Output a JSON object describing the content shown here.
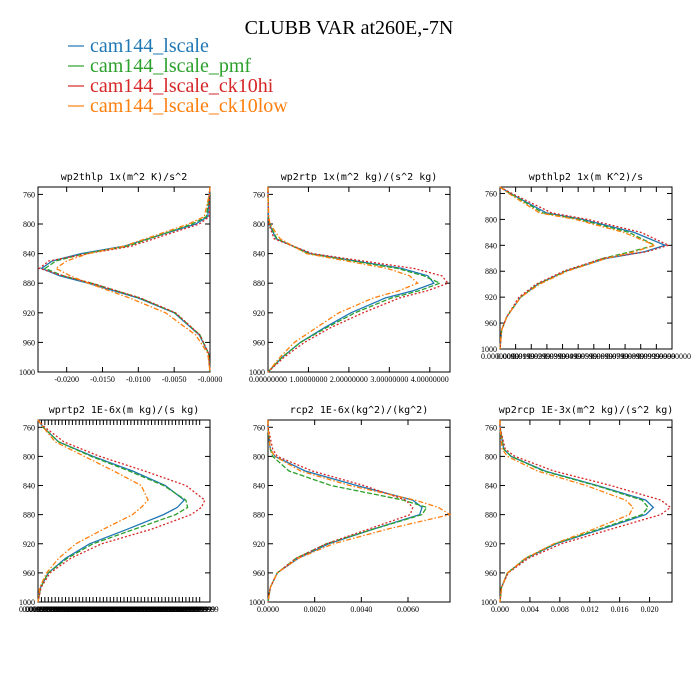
{
  "figure": {
    "title": "CLUBB VAR at260E,-7N",
    "legend": [
      {
        "name": "cam144_lscale",
        "color": "#1f77b4"
      },
      {
        "name": "cam144_lscale_pmf",
        "color": "#2ca02c"
      },
      {
        "name": "cam144_lscale_ck10hi",
        "color": "#d62728"
      },
      {
        "name": "cam144_lscale_ck10low",
        "color": "#ff7f0e"
      }
    ]
  },
  "chart_data": [
    {
      "type": "line",
      "title": "wp2thlp  1x(m^2 K)/s^2",
      "xlim": [
        -0.024,
        0.0
      ],
      "ylim": [
        1000,
        750
      ],
      "x_tick_labels": [
        "-0.0200",
        "-0.0150",
        "-0.0100",
        "-0.0050",
        "-0.0000"
      ],
      "x_tick_values": [
        -0.02,
        -0.015,
        -0.01,
        -0.005,
        0.0
      ],
      "y_ticks": [
        760,
        800,
        840,
        880,
        920,
        960,
        1000
      ],
      "y": [
        750,
        760,
        790,
        800,
        830,
        840,
        850,
        860,
        870,
        880,
        900,
        920,
        950,
        975,
        1000
      ],
      "series": [
        {
          "name": "cam144_lscale",
          "values": [
            0.0,
            -0.0001,
            -0.0003,
            -0.002,
            -0.012,
            -0.018,
            -0.022,
            -0.0235,
            -0.021,
            -0.017,
            -0.01,
            -0.005,
            -0.0015,
            -0.0002,
            0.0
          ]
        },
        {
          "name": "cam144_lscale_pmf",
          "values": [
            0.0,
            -0.0001,
            -0.0005,
            -0.0025,
            -0.0115,
            -0.0175,
            -0.0215,
            -0.023,
            -0.0205,
            -0.0165,
            -0.0098,
            -0.0049,
            -0.0014,
            -0.0002,
            0.0
          ]
        },
        {
          "name": "cam144_lscale_ck10hi",
          "values": [
            0.0,
            -0.0001,
            -0.0001,
            -0.0015,
            -0.011,
            -0.017,
            -0.0225,
            -0.0238,
            -0.0205,
            -0.0165,
            -0.0097,
            -0.0048,
            -0.0014,
            -0.0002,
            0.0
          ]
        },
        {
          "name": "cam144_lscale_ck10low",
          "values": [
            0.0,
            -0.0001,
            -0.0008,
            -0.003,
            -0.012,
            -0.017,
            -0.02,
            -0.0215,
            -0.0195,
            -0.017,
            -0.0112,
            -0.0062,
            -0.002,
            -0.0003,
            0.0
          ]
        }
      ]
    },
    {
      "type": "line",
      "title": "wp2rtp  1x(m^2 kg)/(s^2 kg)",
      "xlim": [
        0.0,
        4.5e-08
      ],
      "ylim": [
        1000,
        750
      ],
      "x_tick_labels": [
        "0.00000000",
        "1.00000000",
        "2.00000000",
        "3.00000000",
        "4.00000000"
      ],
      "x_tick_values": [
        0.0,
        1e-08,
        2e-08,
        3e-08,
        4e-08
      ],
      "y_ticks": [
        760,
        800,
        840,
        880,
        920,
        960,
        1000
      ],
      "y": [
        750,
        760,
        790,
        800,
        820,
        840,
        860,
        870,
        880,
        890,
        900,
        920,
        940,
        960,
        980,
        1000
      ],
      "series": [
        {
          "name": "cam144_lscale",
          "values": [
            0.0,
            0.0,
            1e-10,
            3e-10,
            2e-09,
            1.05e-08,
            3.3e-08,
            3.95e-08,
            4.1e-08,
            3.6e-08,
            2.9e-08,
            2.05e-08,
            1.4e-08,
            8e-09,
            3.5e-09,
            0.0
          ]
        },
        {
          "name": "cam144_lscale_pmf",
          "values": [
            0.0,
            0.0,
            1e-10,
            4e-10,
            2.2e-09,
            1e-08,
            3.2e-08,
            3.85e-08,
            4.25e-08,
            3.75e-08,
            3.05e-08,
            2.15e-08,
            1.45e-08,
            8e-09,
            3.5e-09,
            0.0
          ]
        },
        {
          "name": "cam144_lscale_ck10hi",
          "values": [
            0.0,
            0.0,
            1e-10,
            2e-10,
            1.5e-09,
            1.1e-08,
            3.6e-08,
            4.3e-08,
            4.45e-08,
            3.95e-08,
            3.25e-08,
            2.35e-08,
            1.55e-08,
            9e-09,
            4e-09,
            0.0
          ]
        },
        {
          "name": "cam144_lscale_ck10low",
          "values": [
            0.0,
            0.0,
            2e-10,
            5e-10,
            3e-09,
            9.5e-09,
            2.95e-08,
            3.5e-08,
            3.7e-08,
            3.25e-08,
            2.6e-08,
            1.75e-08,
            1.2e-08,
            6.5e-09,
            3e-09,
            0.0
          ]
        }
      ]
    },
    {
      "type": "line",
      "title": "wpthlp2  1x(m K^2)/s",
      "xlim": [
        0.0,
        1.0
      ],
      "ylim": [
        1000,
        750
      ],
      "x_tick_labels": [
        "0.00000000",
        "0.00999999",
        "0.01999999",
        "0.02999999",
        "0.03999999",
        "0.04999999",
        "0.05999999",
        "0.06999999",
        "0.07999999",
        "0.08999999",
        "0.09999999",
        "1.00000000"
      ],
      "x_tick_values": [
        0.0,
        0.0909,
        0.1818,
        0.2727,
        0.3636,
        0.4545,
        0.5454,
        0.6363,
        0.7272,
        0.8181,
        0.909,
        1.0
      ],
      "y_ticks": [
        760,
        800,
        840,
        880,
        920,
        960,
        1000
      ],
      "y": [
        750,
        760,
        790,
        800,
        820,
        840,
        850,
        860,
        880,
        900,
        920,
        950,
        970,
        1000
      ],
      "series": [
        {
          "name": "cam144_lscale",
          "values": [
            0.0,
            0.06,
            0.27,
            0.48,
            0.78,
            0.96,
            0.84,
            0.62,
            0.38,
            0.22,
            0.12,
            0.04,
            0.01,
            0.0
          ]
        },
        {
          "name": "cam144_lscale_pmf",
          "values": [
            0.0,
            0.06,
            0.25,
            0.46,
            0.75,
            0.9,
            0.76,
            0.6,
            0.38,
            0.22,
            0.12,
            0.04,
            0.01,
            0.0
          ]
        },
        {
          "name": "cam144_lscale_ck10hi",
          "values": [
            0.0,
            0.07,
            0.3,
            0.51,
            0.82,
            0.98,
            0.85,
            0.6,
            0.37,
            0.21,
            0.11,
            0.04,
            0.01,
            0.0
          ]
        },
        {
          "name": "cam144_lscale_ck10low",
          "values": [
            0.0,
            0.05,
            0.23,
            0.44,
            0.72,
            0.9,
            0.78,
            0.62,
            0.39,
            0.23,
            0.12,
            0.04,
            0.01,
            0.0
          ]
        }
      ]
    },
    {
      "type": "line",
      "title": "wprtp2  1E-6x(m kg)/(s kg)",
      "xlim": [
        0.0,
        1.0
      ],
      "ylim": [
        1000,
        750
      ],
      "x_tick_labels": [
        "0.00000000",
        "0.01999999",
        "0.03999999",
        "0.05999999",
        "0.07999999",
        "0.09999999",
        "0.11999999",
        "0.13999999",
        "0.15999999",
        "0.17999999",
        "0.19999999",
        "0.21999999",
        "0.23999999",
        "0.25999999",
        "0.27999999",
        "0.29999999",
        "0.31999999",
        "0.33999999",
        "0.35999999",
        "0.37999999",
        "0.39999999",
        "0.41999999",
        "0.43999999",
        "0.45999999",
        "0.47999999",
        "0.49999999",
        "0.51999999",
        "0.53999999",
        "0.55999999",
        "0.57999999",
        "0.59999999",
        "0.61999999",
        "0.63999999",
        "0.65999999",
        "0.67999999",
        "0.69999999",
        "0.71999999",
        "0.73999999",
        "0.75999999",
        "0.77999999",
        "0.79999999",
        "0.81999999",
        "0.83999999",
        "0.85999999",
        "0.87999999",
        "0.89999999",
        "0.91999999",
        "0.93999999"
      ],
      "x_tick_values": [
        0.0,
        0.02,
        0.04,
        0.06,
        0.08,
        0.1,
        0.12,
        0.14,
        0.16,
        0.18,
        0.2,
        0.22,
        0.24,
        0.26,
        0.28,
        0.3,
        0.32,
        0.34,
        0.36,
        0.38,
        0.4,
        0.42,
        0.44,
        0.46,
        0.48,
        0.5,
        0.52,
        0.54,
        0.56,
        0.58,
        0.6,
        0.62,
        0.64,
        0.66,
        0.68,
        0.7,
        0.72,
        0.74,
        0.76,
        0.78,
        0.8,
        0.82,
        0.84,
        0.86,
        0.88,
        0.9,
        0.92,
        0.94
      ],
      "y_ticks": [
        760,
        800,
        840,
        880,
        920,
        960,
        1000
      ],
      "y": [
        750,
        760,
        780,
        800,
        820,
        840,
        860,
        870,
        880,
        900,
        920,
        940,
        960,
        980,
        1000
      ],
      "series": [
        {
          "name": "cam144_lscale",
          "values": [
            0.0,
            0.03,
            0.12,
            0.32,
            0.55,
            0.74,
            0.85,
            0.81,
            0.73,
            0.52,
            0.3,
            0.16,
            0.06,
            0.015,
            0.0
          ]
        },
        {
          "name": "cam144_lscale_pmf",
          "values": [
            0.0,
            0.03,
            0.12,
            0.31,
            0.53,
            0.73,
            0.86,
            0.87,
            0.8,
            0.56,
            0.32,
            0.17,
            0.06,
            0.015,
            0.0
          ]
        },
        {
          "name": "cam144_lscale_ck10hi",
          "values": [
            0.0,
            0.04,
            0.15,
            0.36,
            0.62,
            0.86,
            0.97,
            0.95,
            0.89,
            0.66,
            0.37,
            0.19,
            0.07,
            0.018,
            0.0
          ]
        },
        {
          "name": "cam144_lscale_ck10low",
          "values": [
            0.0,
            0.03,
            0.1,
            0.27,
            0.44,
            0.6,
            0.64,
            0.6,
            0.55,
            0.38,
            0.22,
            0.12,
            0.05,
            0.01,
            0.0
          ]
        }
      ]
    },
    {
      "type": "line",
      "title": "rcp2  1E-6x(kg^2)/(kg^2)",
      "xlim": [
        0.0,
        0.0078
      ],
      "ylim": [
        1000,
        750
      ],
      "x_tick_labels": [
        "0.0000",
        "0.0020",
        "0.0040",
        "0.0060"
      ],
      "x_tick_values": [
        0.0,
        0.002,
        0.004,
        0.006
      ],
      "y_ticks": [
        760,
        800,
        840,
        880,
        920,
        960,
        1000
      ],
      "y": [
        750,
        760,
        790,
        800,
        820,
        840,
        860,
        870,
        880,
        900,
        920,
        940,
        960,
        980,
        1000
      ],
      "series": [
        {
          "name": "cam144_lscale",
          "values": [
            0.0,
            0.0,
            0.0001,
            0.0003,
            0.0016,
            0.0038,
            0.0062,
            0.0066,
            0.0065,
            0.0045,
            0.0026,
            0.0013,
            0.0004,
            0.0001,
            0.0
          ]
        },
        {
          "name": "cam144_lscale_pmf",
          "values": [
            0.0,
            0.0,
            0.0001,
            0.0002,
            0.0009,
            0.0027,
            0.0058,
            0.0068,
            0.0066,
            0.0045,
            0.0025,
            0.0012,
            0.0004,
            0.0001,
            0.0
          ]
        },
        {
          "name": "cam144_lscale_ck10hi",
          "values": [
            0.0,
            0.0,
            0.0002,
            0.0004,
            0.0019,
            0.0041,
            0.0059,
            0.0062,
            0.0061,
            0.0043,
            0.0025,
            0.0012,
            0.0004,
            0.0001,
            0.0
          ]
        },
        {
          "name": "cam144_lscale_ck10low",
          "values": [
            0.0,
            0.0,
            0.0001,
            0.0003,
            0.0014,
            0.0035,
            0.0063,
            0.0073,
            0.0078,
            0.0051,
            0.0028,
            0.0013,
            0.0004,
            0.0001,
            0.0
          ]
        }
      ]
    },
    {
      "type": "line",
      "title": "wp2rcp  1E-3x(m^2 kg)/(s^2 kg)",
      "xlim": [
        0.0,
        0.023
      ],
      "ylim": [
        1000,
        750
      ],
      "x_tick_labels": [
        "0.000",
        "0.004",
        "0.008",
        "0.012",
        "0.016",
        "0.020"
      ],
      "x_tick_values": [
        0.0,
        0.004,
        0.008,
        0.012,
        0.016,
        0.02
      ],
      "y_ticks": [
        760,
        800,
        840,
        880,
        920,
        960,
        1000
      ],
      "y": [
        750,
        760,
        790,
        800,
        820,
        840,
        860,
        870,
        880,
        900,
        920,
        940,
        960,
        980,
        1000
      ],
      "series": [
        {
          "name": "cam144_lscale",
          "values": [
            0.0,
            0.0,
            0.0005,
            0.0015,
            0.006,
            0.013,
            0.0195,
            0.0205,
            0.0195,
            0.0135,
            0.0075,
            0.0035,
            0.001,
            0.0002,
            0.0
          ]
        },
        {
          "name": "cam144_lscale_pmf",
          "values": [
            0.0,
            0.0,
            0.0005,
            0.0015,
            0.0058,
            0.0128,
            0.019,
            0.0198,
            0.019,
            0.0132,
            0.0073,
            0.0034,
            0.001,
            0.0002,
            0.0
          ]
        },
        {
          "name": "cam144_lscale_ck10hi",
          "values": [
            0.0,
            0.0,
            0.0007,
            0.002,
            0.0072,
            0.0148,
            0.0215,
            0.0228,
            0.0215,
            0.0148,
            0.0082,
            0.0038,
            0.0011,
            0.0002,
            0.0
          ]
        },
        {
          "name": "cam144_lscale_ck10low",
          "values": [
            0.0,
            0.0,
            0.0003,
            0.001,
            0.005,
            0.0115,
            0.0168,
            0.0178,
            0.0173,
            0.0125,
            0.0072,
            0.0034,
            0.001,
            0.0002,
            0.0
          ]
        }
      ]
    }
  ]
}
